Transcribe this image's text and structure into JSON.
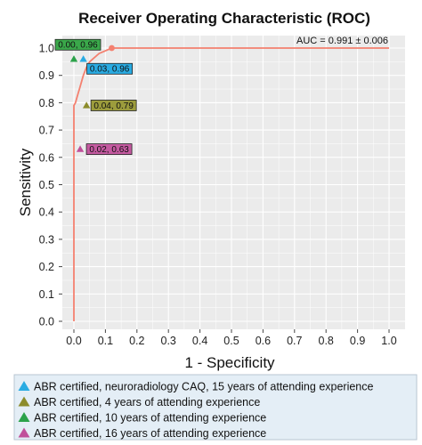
{
  "chart_data": {
    "type": "line",
    "title": "Receiver Operating Characteristic (ROC)",
    "xlabel": "1 - Specificity",
    "ylabel": "Sensitivity",
    "xlim": [
      0,
      1
    ],
    "ylim": [
      0,
      1
    ],
    "x_ticks": [
      "0.0",
      "0.1",
      "0.2",
      "0.3",
      "0.4",
      "0.5",
      "0.6",
      "0.7",
      "0.8",
      "0.9",
      "1.0"
    ],
    "y_ticks": [
      "0.0",
      "0.1",
      "0.2",
      "0.3",
      "0.4",
      "0.5",
      "0.6",
      "0.7",
      "0.8",
      "0.9",
      "1.0"
    ],
    "grid": true,
    "annotation": "AUC = 0.991 ± 0.006",
    "series": [
      {
        "color": "#f4806f",
        "x": [
          0.0,
          0.0,
          0.0,
          0.005,
          0.01,
          0.02,
          0.03,
          0.04,
          0.05,
          0.06,
          0.08,
          0.1,
          0.12,
          1.0
        ],
        "y": [
          0.0,
          0.5,
          0.79,
          0.8,
          0.82,
          0.86,
          0.9,
          0.93,
          0.95,
          0.96,
          0.98,
          0.99,
          1.0,
          1.0
        ],
        "highlight_point": [
          0.12,
          1.0
        ]
      }
    ],
    "points": [
      {
        "x": 0.03,
        "y": 0.96,
        "label": "0.03, 0.96",
        "color": "#29abe2",
        "box_color": "#29abe2"
      },
      {
        "x": 0.04,
        "y": 0.79,
        "label": "0.04, 0.79",
        "color": "#8c8c2c",
        "box_color": "#9c9c3c"
      },
      {
        "x": 0.0,
        "y": 0.96,
        "label": "0.00, 0.96",
        "color": "#2ca24a",
        "box_color": "#3aa84a"
      },
      {
        "x": 0.02,
        "y": 0.63,
        "label": "0.02, 0.63",
        "color": "#c0509a",
        "box_color": "#c45aa0"
      }
    ],
    "legend": {
      "placement": "bottom",
      "items": [
        {
          "label": "ABR certified, neuroradiology CAQ, 15 years of attending experience",
          "color": "#29abe2"
        },
        {
          "label": "ABR certified, 4 years of attending experience",
          "color": "#8c8c2c"
        },
        {
          "label": "ABR certified, 10 years of attending experience",
          "color": "#2ca24a"
        },
        {
          "label": "ABR certified, 16 years of attending experience",
          "color": "#c0509a"
        }
      ]
    },
    "colors": {
      "panel_background": "#ebebeb",
      "grid": "#ffffff",
      "legend_background": "#e4eef6"
    }
  }
}
